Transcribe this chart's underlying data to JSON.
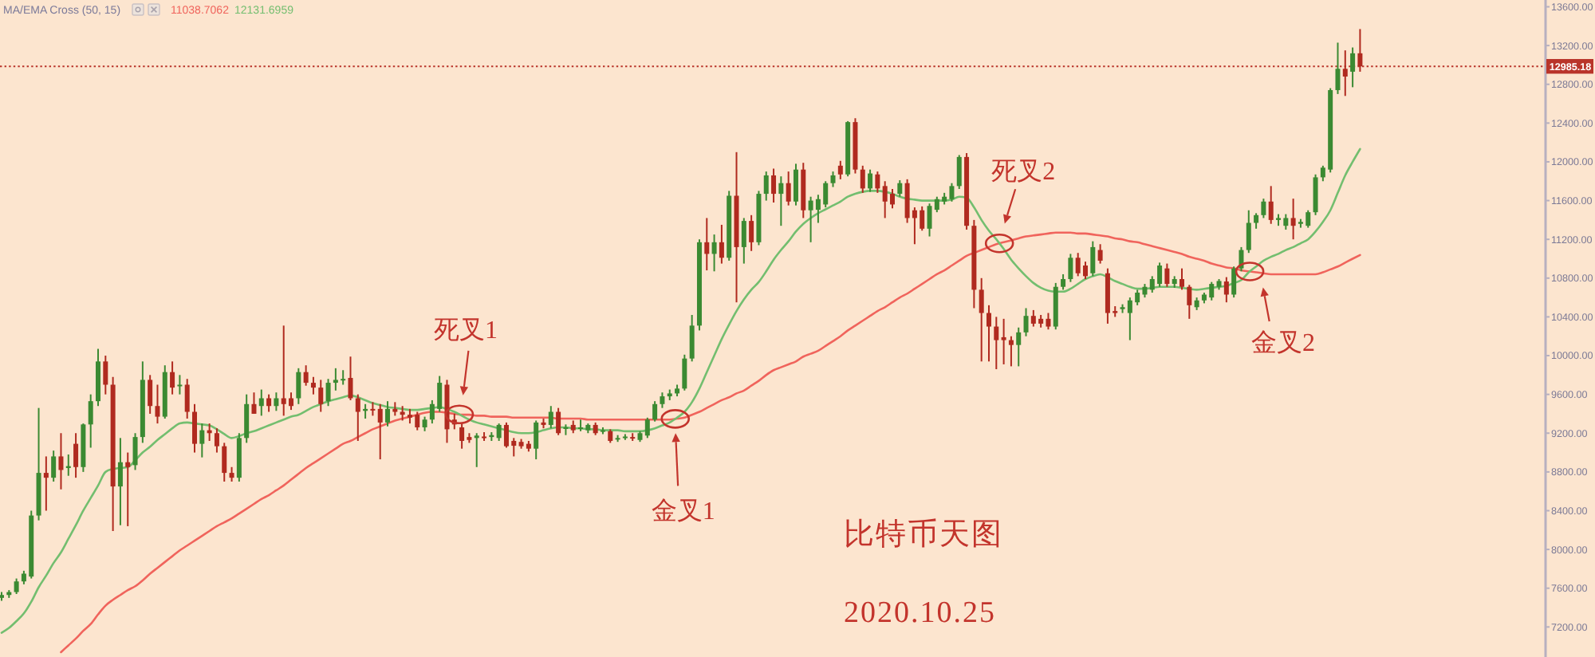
{
  "chart_data": {
    "type": "candlestick",
    "legend": "top left",
    "legend_title": "MA/EMA Cross (50, 15)",
    "tick_labels": "y",
    "annotations": [
      "死叉1",
      "金叉1",
      "死叉2",
      "金叉2",
      "比特币天图",
      "2020.10.25"
    ],
    "ylim": [
      6890,
      13670
    ],
    "yticks": [
      {
        "value": 7200,
        "label": "7200.00"
      },
      {
        "value": 7600,
        "label": "7600.00"
      },
      {
        "value": 8000,
        "label": "8000.00"
      },
      {
        "value": 8400,
        "label": "8400.00"
      },
      {
        "value": 8800,
        "label": "8800.00"
      },
      {
        "value": 9200,
        "label": "9200.00"
      },
      {
        "value": 9600,
        "label": "9600.00"
      },
      {
        "value": 10000,
        "label": "10000.00"
      },
      {
        "value": 10400,
        "label": "10400.00"
      },
      {
        "value": 10800,
        "label": "10800.00"
      },
      {
        "value": 11200,
        "label": "11200.00"
      },
      {
        "value": 11600,
        "label": "11600.00"
      },
      {
        "value": 12000,
        "label": "12000.00"
      },
      {
        "value": 12400,
        "label": "12400.00"
      },
      {
        "value": 12800,
        "label": "12800.00"
      },
      {
        "value": 12985.18,
        "label": "12985.18"
      },
      {
        "value": 13200,
        "label": "13200.00"
      },
      {
        "value": 13600,
        "label": "13600.00"
      }
    ],
    "ref_lines": [
      {
        "axis": "y",
        "value": 12985.18,
        "color": "#b9342a",
        "line_style": "dotted"
      }
    ],
    "categories": [
      null,
      null,
      null,
      null,
      null,
      null,
      null,
      null,
      null,
      null,
      null,
      null,
      null,
      null,
      null,
      null,
      null,
      null,
      null,
      null,
      null,
      null,
      null,
      null,
      null,
      null,
      null,
      null,
      null,
      null,
      null,
      null,
      null,
      null,
      null,
      null,
      null,
      null,
      null,
      null,
      null,
      null,
      null,
      null,
      null,
      null,
      null,
      null,
      null,
      null,
      null,
      null,
      null,
      null,
      null,
      null,
      null,
      null,
      null,
      null,
      null,
      null,
      null,
      null,
      null,
      null,
      null,
      null,
      null,
      null,
      null,
      null,
      null,
      null,
      null,
      null,
      null,
      null,
      null,
      null,
      null,
      null,
      null,
      null,
      null,
      null,
      null,
      null,
      null,
      null,
      null,
      null,
      null,
      null,
      null,
      null,
      null,
      null,
      null,
      null,
      null,
      null,
      null,
      null,
      null,
      null,
      null,
      null,
      null,
      null,
      null,
      null,
      null,
      null,
      null,
      null,
      null,
      null,
      null,
      null,
      null,
      null,
      null,
      null,
      null,
      null,
      null,
      null,
      null,
      null,
      null,
      null,
      null,
      null,
      null,
      null,
      null,
      null,
      null,
      null,
      null,
      null,
      null,
      null,
      null,
      null,
      null,
      null,
      null,
      null,
      null,
      null,
      null,
      null,
      null,
      null,
      null,
      null,
      null,
      null,
      null,
      null,
      null,
      null,
      null,
      null,
      null,
      null,
      null,
      null,
      null,
      null,
      null,
      null,
      null,
      null,
      null,
      null,
      null,
      null,
      null,
      null,
      null,
      null
    ],
    "ohlc": [
      [
        7500,
        7560,
        7470,
        7530
      ],
      [
        7530,
        7580,
        7500,
        7560
      ],
      [
        7560,
        7700,
        7540,
        7670
      ],
      [
        7670,
        7780,
        7640,
        7750
      ],
      [
        7720,
        8400,
        7700,
        8350
      ],
      [
        8350,
        9460,
        8300,
        8790
      ],
      [
        8790,
        8960,
        8400,
        8740
      ],
      [
        8740,
        9020,
        8700,
        8960
      ],
      [
        8960,
        9200,
        8620,
        8820
      ],
      [
        8840,
        8980,
        8760,
        8860
      ],
      [
        9090,
        9200,
        8740,
        8850
      ],
      [
        8850,
        9300,
        8800,
        9290
      ],
      [
        9290,
        9600,
        9050,
        9530
      ],
      [
        9530,
        10070,
        9480,
        9940
      ],
      [
        9940,
        10000,
        9600,
        9700
      ],
      [
        9700,
        9780,
        8190,
        8650
      ],
      [
        8650,
        9150,
        8250,
        8900
      ],
      [
        8900,
        9000,
        8240,
        8850
      ],
      [
        8870,
        9200,
        8820,
        9160
      ],
      [
        9160,
        9940,
        9100,
        9750
      ],
      [
        9750,
        9800,
        9400,
        9480
      ],
      [
        9480,
        9700,
        9300,
        9370
      ],
      [
        9370,
        9900,
        9350,
        9830
      ],
      [
        9830,
        9940,
        9600,
        9670
      ],
      [
        9690,
        9800,
        9600,
        9700
      ],
      [
        9700,
        9760,
        9350,
        9420
      ],
      [
        9420,
        9500,
        9000,
        9090
      ],
      [
        9090,
        9300,
        8950,
        9230
      ],
      [
        9230,
        9300,
        9120,
        9200
      ],
      [
        9200,
        9250,
        9000,
        9065
      ],
      [
        9065,
        9100,
        8700,
        8790
      ],
      [
        8790,
        8850,
        8700,
        8740
      ],
      [
        8740,
        9200,
        8700,
        9150
      ],
      [
        9150,
        9600,
        9100,
        9500
      ],
      [
        9500,
        9620,
        9400,
        9400
      ],
      [
        9480,
        9650,
        9380,
        9560
      ],
      [
        9560,
        9600,
        9420,
        9480
      ],
      [
        9480,
        9620,
        9430,
        9560
      ],
      [
        9560,
        10310,
        9380,
        9500
      ],
      [
        9560,
        9620,
        9440,
        9480
      ],
      [
        9560,
        9870,
        9500,
        9830
      ],
      [
        9830,
        9900,
        9690,
        9720
      ],
      [
        9720,
        9780,
        9600,
        9670
      ],
      [
        9670,
        9750,
        9420,
        9500
      ],
      [
        9530,
        9760,
        9480,
        9720
      ],
      [
        9720,
        9870,
        9640,
        9750
      ],
      [
        9750,
        9850,
        9700,
        9760
      ],
      [
        9770,
        9990,
        9540,
        9560
      ],
      [
        9560,
        9600,
        9120,
        9420
      ],
      [
        9430,
        9500,
        9350,
        9450
      ],
      [
        9450,
        9520,
        9380,
        9440
      ],
      [
        9450,
        9500,
        8930,
        9310
      ],
      [
        9310,
        9530,
        9270,
        9450
      ],
      [
        9450,
        9520,
        9380,
        9420
      ],
      [
        9420,
        9480,
        9330,
        9390
      ],
      [
        9390,
        9450,
        9300,
        9360
      ],
      [
        9390,
        9420,
        9230,
        9260
      ],
      [
        9260,
        9370,
        9220,
        9340
      ],
      [
        9340,
        9540,
        9300,
        9500
      ],
      [
        9450,
        9790,
        9420,
        9720
      ],
      [
        9700,
        9750,
        9100,
        9240
      ],
      [
        9340,
        9400,
        9240,
        9290
      ],
      [
        9260,
        9300,
        9040,
        9120
      ],
      [
        9160,
        9200,
        9100,
        9130
      ],
      [
        9150,
        9200,
        8850,
        9175
      ],
      [
        9165,
        9210,
        9120,
        9160
      ],
      [
        9160,
        9210,
        9120,
        9180
      ],
      [
        9150,
        9300,
        9120,
        9285
      ],
      [
        9285,
        9310,
        9050,
        9065
      ],
      [
        9120,
        9150,
        8960,
        9070
      ],
      [
        9110,
        9140,
        9040,
        9065
      ],
      [
        9090,
        9120,
        9010,
        9040
      ],
      [
        9040,
        9330,
        8930,
        9310
      ],
      [
        9310,
        9350,
        9250,
        9285
      ],
      [
        9285,
        9480,
        9250,
        9420
      ],
      [
        9420,
        9460,
        9180,
        9200
      ],
      [
        9250,
        9290,
        9180,
        9260
      ],
      [
        9285,
        9330,
        9200,
        9230
      ],
      [
        9250,
        9340,
        9220,
        9260
      ],
      [
        9230,
        9300,
        9200,
        9285
      ],
      [
        9285,
        9310,
        9180,
        9200
      ],
      [
        9220,
        9260,
        9190,
        9230
      ],
      [
        9220,
        9240,
        9100,
        9120
      ],
      [
        9140,
        9180,
        9110,
        9150
      ],
      [
        9150,
        9190,
        9130,
        9165
      ],
      [
        9160,
        9200,
        9120,
        9145
      ],
      [
        9130,
        9220,
        9110,
        9200
      ],
      [
        9175,
        9360,
        9150,
        9340
      ],
      [
        9340,
        9530,
        9320,
        9500
      ],
      [
        9500,
        9620,
        9460,
        9580
      ],
      [
        9580,
        9650,
        9540,
        9610
      ],
      [
        9610,
        9700,
        9580,
        9660
      ],
      [
        9660,
        10010,
        9640,
        9970
      ],
      [
        9970,
        10420,
        9940,
        10310
      ],
      [
        10310,
        11200,
        10260,
        11170
      ],
      [
        11170,
        11420,
        10880,
        11050
      ],
      [
        11050,
        11250,
        10870,
        11170
      ],
      [
        11170,
        11350,
        10950,
        11010
      ],
      [
        11010,
        11700,
        10980,
        11650
      ],
      [
        11650,
        12100,
        10550,
        11120
      ],
      [
        11120,
        11420,
        10950,
        11390
      ],
      [
        11390,
        11450,
        11080,
        11170
      ],
      [
        11170,
        11700,
        11140,
        11670
      ],
      [
        11670,
        11900,
        11600,
        11860
      ],
      [
        11860,
        11930,
        11580,
        11670
      ],
      [
        11670,
        11850,
        11340,
        11780
      ],
      [
        11780,
        11900,
        11550,
        11590
      ],
      [
        11590,
        11980,
        11550,
        11920
      ],
      [
        11920,
        11990,
        11420,
        11500
      ],
      [
        11500,
        11640,
        11170,
        11600
      ],
      [
        11505,
        11660,
        11370,
        11615
      ],
      [
        11560,
        11800,
        11530,
        11780
      ],
      [
        11780,
        11900,
        11740,
        11860
      ],
      [
        11960,
        12010,
        11820,
        11870
      ],
      [
        11870,
        12420,
        11850,
        12410
      ],
      [
        12410,
        12450,
        11880,
        11920
      ],
      [
        11920,
        11960,
        11680,
        11725
      ],
      [
        11725,
        11920,
        11690,
        11880
      ],
      [
        11870,
        11900,
        11680,
        11725
      ],
      [
        11750,
        11800,
        11420,
        11590
      ],
      [
        11670,
        11720,
        11520,
        11560
      ],
      [
        11670,
        11810,
        11640,
        11780
      ],
      [
        11780,
        11820,
        11370,
        11420
      ],
      [
        11500,
        11530,
        11150,
        11420
      ],
      [
        11500,
        11540,
        11290,
        11310
      ],
      [
        11310,
        11570,
        11230,
        11545
      ],
      [
        11505,
        11640,
        11480,
        11615
      ],
      [
        11590,
        11680,
        11560,
        11640
      ],
      [
        11615,
        11780,
        11590,
        11750
      ],
      [
        11750,
        12070,
        11720,
        12050
      ],
      [
        12050,
        12090,
        11300,
        11340
      ],
      [
        11340,
        11400,
        10490,
        10680
      ],
      [
        10680,
        10800,
        9940,
        10440
      ],
      [
        10440,
        10520,
        9940,
        10300
      ],
      [
        10300,
        10400,
        9860,
        10160
      ],
      [
        10190,
        10380,
        9910,
        10160
      ],
      [
        10160,
        10200,
        9890,
        10110
      ],
      [
        10110,
        10290,
        9890,
        10240
      ],
      [
        10240,
        10490,
        10200,
        10410
      ],
      [
        10410,
        10470,
        10300,
        10330
      ],
      [
        10380,
        10420,
        10290,
        10330
      ],
      [
        10380,
        10440,
        10270,
        10300
      ],
      [
        10300,
        10750,
        10270,
        10710
      ],
      [
        10710,
        10840,
        10680,
        10790
      ],
      [
        10790,
        11050,
        10760,
        11010
      ],
      [
        11010,
        11060,
        10820,
        10850
      ],
      [
        10930,
        10970,
        10790,
        10820
      ],
      [
        10850,
        11180,
        10820,
        11120
      ],
      [
        11090,
        11150,
        10950,
        10980
      ],
      [
        10850,
        10900,
        10330,
        10440
      ],
      [
        10460,
        10510,
        10400,
        10440
      ],
      [
        10480,
        10530,
        10440,
        10500
      ],
      [
        10440,
        10600,
        10160,
        10570
      ],
      [
        10550,
        10680,
        10520,
        10650
      ],
      [
        10630,
        10740,
        10600,
        10710
      ],
      [
        10680,
        10820,
        10650,
        10790
      ],
      [
        10740,
        10960,
        10710,
        10930
      ],
      [
        10900,
        10950,
        10710,
        10740
      ],
      [
        10740,
        10820,
        10700,
        10790
      ],
      [
        10790,
        10900,
        10680,
        10710
      ],
      [
        10710,
        10730,
        10380,
        10520
      ],
      [
        10500,
        10600,
        10470,
        10570
      ],
      [
        10570,
        10650,
        10540,
        10630
      ],
      [
        10600,
        10760,
        10570,
        10740
      ],
      [
        10710,
        10790,
        10680,
        10770
      ],
      [
        10765,
        10810,
        10550,
        10630
      ],
      [
        10630,
        10920,
        10600,
        10900
      ],
      [
        10900,
        11120,
        10870,
        11090
      ],
      [
        11090,
        11500,
        11060,
        11370
      ],
      [
        11370,
        11470,
        11310,
        11450
      ],
      [
        11450,
        11620,
        11420,
        11590
      ],
      [
        11590,
        11750,
        11360,
        11400
      ],
      [
        11400,
        11460,
        11340,
        11420
      ],
      [
        11340,
        11460,
        11300,
        11420
      ],
      [
        11420,
        11620,
        11200,
        11340
      ],
      [
        11360,
        11410,
        11320,
        11380
      ],
      [
        11340,
        11500,
        11320,
        11480
      ],
      [
        11480,
        11870,
        11450,
        11840
      ],
      [
        11840,
        11960,
        11800,
        11940
      ],
      [
        11920,
        12760,
        11890,
        12740
      ],
      [
        12740,
        13230,
        12700,
        12960
      ],
      [
        12960,
        13150,
        12680,
        12880
      ],
      [
        12930,
        13180,
        12770,
        13120
      ],
      [
        13120,
        13370,
        12930,
        12985.18
      ]
    ],
    "series": [
      {
        "type": "line",
        "name": "11038.7062",
        "color": "#f0645c",
        "values": [
          null,
          null,
          null,
          null,
          null,
          null,
          null,
          null,
          6940,
          7010,
          7080,
          7160,
          7230,
          7330,
          7420,
          7480,
          7530,
          7580,
          7620,
          7680,
          7750,
          7810,
          7870,
          7930,
          7990,
          8040,
          8090,
          8140,
          8190,
          8240,
          8280,
          8320,
          8370,
          8420,
          8470,
          8520,
          8560,
          8610,
          8660,
          8720,
          8780,
          8840,
          8890,
          8940,
          8990,
          9040,
          9090,
          9120,
          9160,
          9200,
          9240,
          9270,
          9300,
          9330,
          9350,
          9370,
          9390,
          9410,
          9420,
          9420,
          9410,
          9400,
          9390,
          9390,
          9380,
          9380,
          9370,
          9370,
          9370,
          9360,
          9360,
          9360,
          9360,
          9360,
          9360,
          9350,
          9350,
          9350,
          9350,
          9340,
          9340,
          9340,
          9340,
          9340,
          9340,
          9340,
          9340,
          9340,
          9340,
          9340,
          9340,
          9350,
          9360,
          9390,
          9420,
          9460,
          9500,
          9540,
          9570,
          9610,
          9640,
          9690,
          9740,
          9800,
          9850,
          9880,
          9910,
          9940,
          9990,
          10020,
          10050,
          10100,
          10150,
          10200,
          10260,
          10310,
          10360,
          10410,
          10460,
          10500,
          10550,
          10600,
          10640,
          10690,
          10740,
          10790,
          10840,
          10880,
          10930,
          10980,
          11030,
          11060,
          11090,
          11120,
          11150,
          11170,
          11190,
          11210,
          11230,
          11240,
          11250,
          11260,
          11270,
          11270,
          11270,
          11260,
          11260,
          11250,
          11240,
          11230,
          11210,
          11200,
          11180,
          11170,
          11150,
          11130,
          11110,
          11090,
          11070,
          11050,
          11020,
          11000,
          10980,
          10950,
          10930,
          10910,
          10900,
          10880,
          10870,
          10860,
          10850,
          10840,
          10840,
          10840,
          10840,
          10840,
          10840,
          10840,
          10860,
          10890,
          10920,
          10960,
          11000,
          11038.7062
        ]
      },
      {
        "type": "line",
        "name": "12131.6959",
        "color": "#73be6f",
        "values": [
          7140,
          7190,
          7260,
          7340,
          7460,
          7610,
          7730,
          7860,
          7970,
          8110,
          8250,
          8400,
          8530,
          8660,
          8800,
          8830,
          8840,
          8850,
          8920,
          9000,
          9060,
          9130,
          9190,
          9250,
          9300,
          9310,
          9300,
          9290,
          9280,
          9240,
          9190,
          9150,
          9170,
          9200,
          9220,
          9250,
          9280,
          9310,
          9340,
          9370,
          9390,
          9430,
          9470,
          9500,
          9530,
          9550,
          9570,
          9590,
          9570,
          9540,
          9510,
          9490,
          9470,
          9460,
          9450,
          9440,
          9440,
          9450,
          9460,
          9470,
          9450,
          9420,
          9380,
          9340,
          9310,
          9290,
          9270,
          9250,
          9230,
          9210,
          9200,
          9200,
          9210,
          9230,
          9250,
          9260,
          9260,
          9250,
          9250,
          9240,
          9240,
          9230,
          9230,
          9230,
          9220,
          9220,
          9220,
          9230,
          9250,
          9280,
          9310,
          9360,
          9420,
          9520,
          9660,
          9830,
          10000,
          10170,
          10320,
          10460,
          10580,
          10680,
          10760,
          10870,
          10990,
          11090,
          11180,
          11280,
          11360,
          11420,
          11470,
          11510,
          11550,
          11590,
          11640,
          11670,
          11690,
          11700,
          11700,
          11690,
          11670,
          11640,
          11620,
          11610,
          11600,
          11600,
          11600,
          11600,
          11610,
          11640,
          11630,
          11530,
          11400,
          11290,
          11200,
          11100,
          10990,
          10900,
          10820,
          10750,
          10700,
          10670,
          10660,
          10660,
          10690,
          10740,
          10790,
          10820,
          10840,
          10810,
          10770,
          10740,
          10710,
          10690,
          10690,
          10700,
          10710,
          10710,
          10710,
          10700,
          10690,
          10680,
          10690,
          10700,
          10710,
          10720,
          10750,
          10780,
          10860,
          10920,
          10980,
          11020,
          11050,
          11090,
          11120,
          11160,
          11200,
          11280,
          11380,
          11500,
          11680,
          11860,
          12000,
          12131.6959
        ]
      }
    ]
  }
}
